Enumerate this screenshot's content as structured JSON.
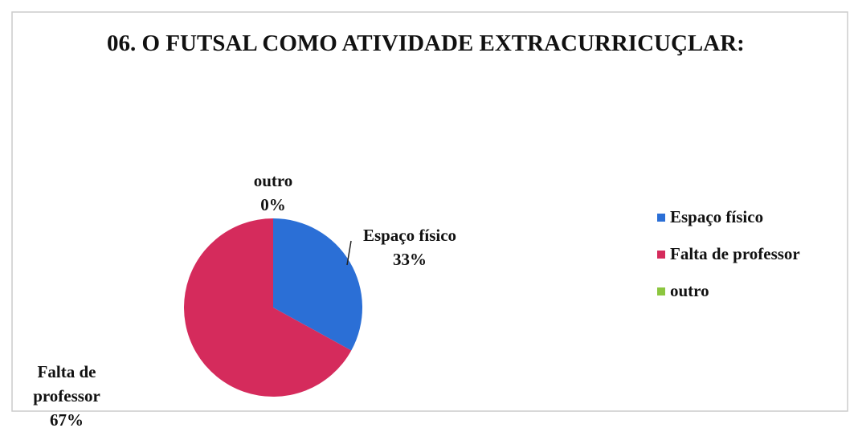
{
  "chart_data": {
    "type": "pie",
    "title": "06. O FUTSAL COMO ATIVIDADE EXTRACURRICUÇLAR:",
    "categories": [
      "Espaço físico",
      "Falta de professor",
      "outro"
    ],
    "values": [
      33,
      67,
      0
    ],
    "value_labels": [
      "33%",
      "67%",
      "0%"
    ],
    "colors": [
      "#2b6fd6",
      "#d52b5c",
      "#8cc63f"
    ],
    "legend": "right"
  }
}
